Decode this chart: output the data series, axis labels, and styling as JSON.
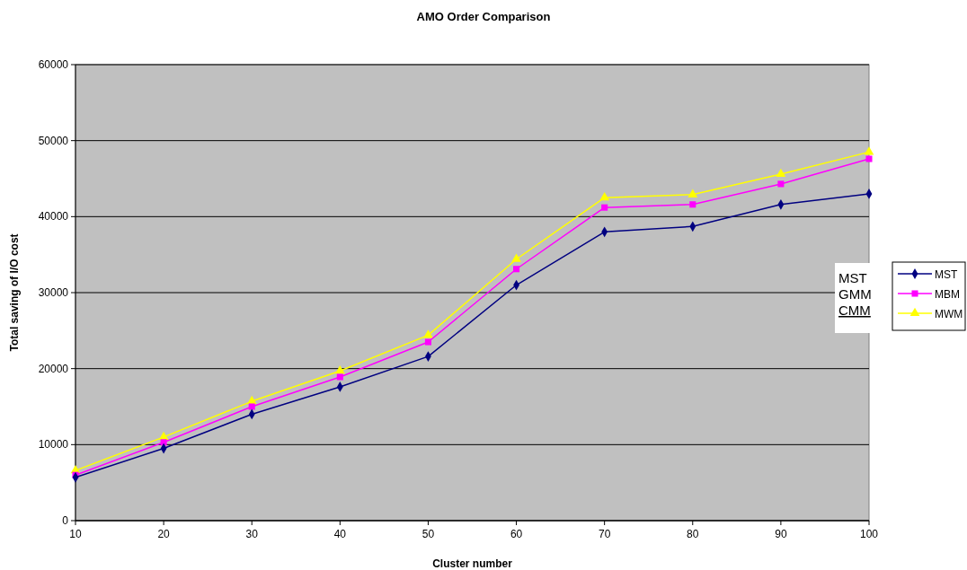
{
  "chart_data": {
    "type": "line",
    "title": "AMO Order Comparison",
    "xlabel": "Cluster number",
    "ylabel": "Total saving of I/O cost",
    "x": [
      10,
      20,
      30,
      40,
      50,
      60,
      70,
      80,
      90,
      100
    ],
    "xlim": [
      10,
      100
    ],
    "xticks": [
      10,
      20,
      30,
      40,
      50,
      60,
      70,
      80,
      90,
      100
    ],
    "ylim": [
      0,
      60000
    ],
    "yticks": [
      0,
      10000,
      20000,
      30000,
      40000,
      50000,
      60000
    ],
    "grid": "y",
    "legend": "right",
    "line_style": "solid",
    "annotations": [
      "MST",
      "GMM",
      "CMM"
    ],
    "series": [
      {
        "name": "MST",
        "color": "#000080",
        "marker": "diamond",
        "values": [
          5700,
          9500,
          14000,
          17600,
          21600,
          31000,
          38000,
          38700,
          41600,
          43000
        ]
      },
      {
        "name": "MBM",
        "color": "#ff00ff",
        "marker": "square",
        "values": [
          6000,
          10300,
          15000,
          18900,
          23500,
          33100,
          41200,
          41600,
          44300,
          47600
        ]
      },
      {
        "name": "MWM",
        "color": "#ffff00",
        "marker": "triangle",
        "values": [
          6600,
          11000,
          15700,
          19700,
          24400,
          34400,
          42500,
          42900,
          45600,
          48500
        ]
      }
    ]
  }
}
